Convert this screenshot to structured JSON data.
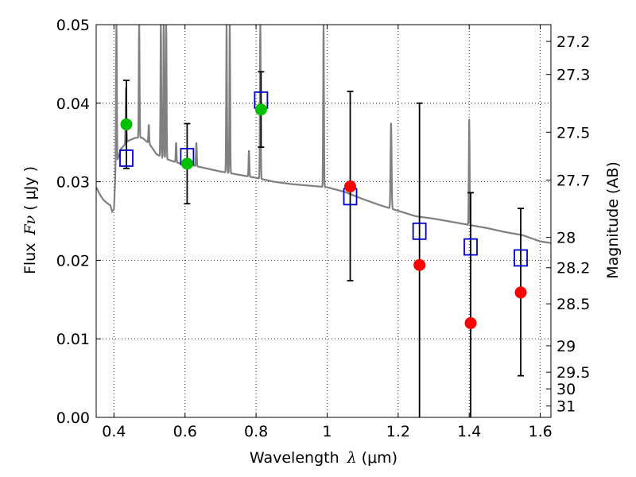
{
  "chart_data": {
    "type": "scatter",
    "xlabel_text": "Wavelength",
    "xlabel_symbol": "λ",
    "xlabel_unit": "(μm)",
    "ylabel_text": "Flux",
    "ylabel_symbol": "Fν",
    "ylabel_unit": "( μJy )",
    "y2label": "Magnitude (AB)",
    "xlim": [
      0.35,
      1.63
    ],
    "ylim": [
      0.0,
      0.05
    ],
    "grid": true,
    "grid_style": "dotted",
    "x_ticks": [
      0.4,
      0.6,
      0.8,
      1.0,
      1.2,
      1.4,
      1.6
    ],
    "x_tick_labels": [
      "0.4",
      "0.6",
      "0.8",
      "1",
      "1.2",
      "1.4",
      "1.6"
    ],
    "y_ticks": [
      0.0,
      0.01,
      0.02,
      0.03,
      0.04,
      0.05
    ],
    "y_tick_labels": [
      "0.00",
      "0.01",
      "0.02",
      "0.03",
      "0.04",
      "0.05"
    ],
    "mag_ticks": [
      {
        "mag": 27.2,
        "label": "27.2"
      },
      {
        "mag": 27.3,
        "label": "27.3"
      },
      {
        "mag": 27.5,
        "label": "27.5"
      },
      {
        "mag": 27.7,
        "label": "27.7"
      },
      {
        "mag": 28.0,
        "label": "28"
      },
      {
        "mag": 28.2,
        "label": "28.2"
      },
      {
        "mag": 28.5,
        "label": "28.5"
      },
      {
        "mag": 29.0,
        "label": "29"
      },
      {
        "mag": 29.5,
        "label": "29.5"
      },
      {
        "mag": 30.0,
        "label": "30"
      },
      {
        "mag": 31.0,
        "label": "31"
      }
    ],
    "colors": {
      "detection": "#00c000",
      "nondetection": "#ff0000",
      "model_points": "#0000cc",
      "spectrum": "#808080",
      "errorbar": "#000000"
    },
    "series": [
      {
        "marker": "circle",
        "color_key": "detection",
        "points": [
          {
            "x": 0.435,
            "y": 0.0373,
            "err": 0.0056
          },
          {
            "x": 0.606,
            "y": 0.0323,
            "err": 0.0051
          },
          {
            "x": 0.814,
            "y": 0.0392,
            "err": 0.0048
          }
        ]
      },
      {
        "marker": "circle",
        "color_key": "nondetection",
        "points": [
          {
            "x": 1.065,
            "y": 0.0294
          },
          {
            "x": 1.26,
            "y": 0.0194
          },
          {
            "x": 1.404,
            "y": 0.012
          },
          {
            "x": 1.545,
            "y": 0.0159
          }
        ]
      },
      {
        "marker": "open-square",
        "color_key": "model_points",
        "points": [
          {
            "x": 0.435,
            "y": 0.033
          },
          {
            "x": 0.606,
            "y": 0.0332
          },
          {
            "x": 0.814,
            "y": 0.0404
          },
          {
            "x": 1.065,
            "y": 0.0281
          },
          {
            "x": 1.26,
            "y": 0.0237
          },
          {
            "x": 1.404,
            "y": 0.0217
          },
          {
            "x": 1.545,
            "y": 0.0203
          }
        ]
      }
    ],
    "errorbars": [
      {
        "x": 0.435,
        "low": 0.0317,
        "high": 0.0429
      },
      {
        "x": 0.606,
        "low": 0.0272,
        "high": 0.0374
      },
      {
        "x": 0.814,
        "low": 0.0344,
        "high": 0.044
      },
      {
        "x": 1.065,
        "low": 0.0174,
        "high": 0.0415
      },
      {
        "x": 1.26,
        "low": 0.0,
        "high": 0.04
      },
      {
        "x": 1.404,
        "low": 0.0,
        "high": 0.0286
      },
      {
        "x": 1.545,
        "low": 0.0053,
        "high": 0.0266
      }
    ],
    "spectrum": {
      "continuum": [
        [
          0.35,
          0.0293
        ],
        [
          0.36,
          0.0284
        ],
        [
          0.37,
          0.0277
        ],
        [
          0.38,
          0.0273
        ],
        [
          0.39,
          0.027
        ],
        [
          0.395,
          0.0262
        ],
        [
          0.4,
          0.0265
        ],
        [
          0.405,
          0.032
        ],
        [
          0.42,
          0.0342
        ],
        [
          0.44,
          0.0352
        ],
        [
          0.46,
          0.0356
        ],
        [
          0.48,
          0.0356
        ],
        [
          0.5,
          0.0348
        ],
        [
          0.52,
          0.0335
        ],
        [
          0.54,
          0.033
        ],
        [
          0.56,
          0.0327
        ],
        [
          0.58,
          0.0324
        ],
        [
          0.6,
          0.0322
        ],
        [
          0.62,
          0.0321
        ],
        [
          0.65,
          0.0318
        ],
        [
          0.7,
          0.0313
        ],
        [
          0.75,
          0.0309
        ],
        [
          0.8,
          0.0305
        ],
        [
          0.85,
          0.03
        ],
        [
          0.9,
          0.0297
        ],
        [
          0.95,
          0.0295
        ],
        [
          1.0,
          0.0293
        ],
        [
          1.05,
          0.0287
        ],
        [
          1.1,
          0.0278
        ],
        [
          1.15,
          0.027
        ],
        [
          1.2,
          0.0263
        ],
        [
          1.25,
          0.0256
        ],
        [
          1.3,
          0.0253
        ],
        [
          1.35,
          0.0249
        ],
        [
          1.4,
          0.0245
        ],
        [
          1.45,
          0.0241
        ],
        [
          1.5,
          0.0236
        ],
        [
          1.55,
          0.0232
        ],
        [
          1.6,
          0.0224
        ],
        [
          1.63,
          0.0222
        ]
      ],
      "lines": [
        {
          "x": 0.407,
          "peak": 0.05,
          "width": 0.003
        },
        {
          "x": 0.434,
          "peak": 0.042,
          "width": 0.003
        },
        {
          "x": 0.471,
          "peak": 0.05,
          "width": 0.003
        },
        {
          "x": 0.498,
          "peak": 0.0373,
          "width": 0.003
        },
        {
          "x": 0.532,
          "peak": 0.05,
          "width": 0.003
        },
        {
          "x": 0.54,
          "peak": 0.05,
          "width": 0.003
        },
        {
          "x": 0.547,
          "peak": 0.05,
          "width": 0.003
        },
        {
          "x": 0.575,
          "peak": 0.035,
          "width": 0.003
        },
        {
          "x": 0.632,
          "peak": 0.035,
          "width": 0.003
        },
        {
          "x": 0.717,
          "peak": 0.05,
          "width": 0.003
        },
        {
          "x": 0.726,
          "peak": 0.05,
          "width": 0.003
        },
        {
          "x": 0.78,
          "peak": 0.034,
          "width": 0.003
        },
        {
          "x": 0.812,
          "peak": 0.05,
          "width": 0.003
        },
        {
          "x": 0.99,
          "peak": 0.05,
          "width": 0.003
        },
        {
          "x": 1.18,
          "peak": 0.0375,
          "width": 0.004
        },
        {
          "x": 1.4,
          "peak": 0.038,
          "width": 0.003
        }
      ]
    }
  }
}
